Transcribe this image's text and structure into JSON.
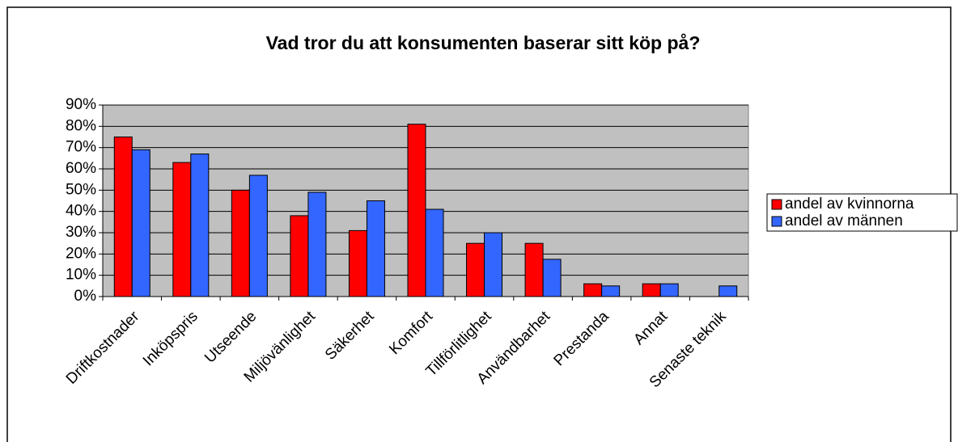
{
  "chart_data": {
    "type": "bar",
    "title": "Vad tror du att konsumenten baserar sitt köp på?",
    "categories": [
      "Driftkostnader",
      "Inköpspris",
      "Utseende",
      "Miljövänlighet",
      "Säkerhet",
      "Komfort",
      "Tillförlitlighet",
      "Användbarhet",
      "Prestanda",
      "Annat",
      "Senaste teknik"
    ],
    "series": [
      {
        "name": "andel av kvinnorna",
        "color": "#ff0000",
        "values": [
          75,
          63,
          50,
          38,
          31,
          81,
          25,
          25,
          6,
          6,
          0
        ]
      },
      {
        "name": "andel av männen",
        "color": "#3366ff",
        "values": [
          69,
          67,
          57,
          49,
          45,
          41,
          30,
          17.5,
          5,
          6,
          5
        ]
      }
    ],
    "ylim": [
      0,
      90
    ],
    "yticks": [
      {
        "value": 0,
        "label": "0%"
      },
      {
        "value": 10,
        "label": "10%"
      },
      {
        "value": 20,
        "label": "20%"
      },
      {
        "value": 30,
        "label": "30%"
      },
      {
        "value": 40,
        "label": "40%"
      },
      {
        "value": 50,
        "label": "50%"
      },
      {
        "value": 60,
        "label": "60%"
      },
      {
        "value": 70,
        "label": "70%"
      },
      {
        "value": 80,
        "label": "80%"
      },
      {
        "value": 90,
        "label": "90%"
      }
    ],
    "grid": true,
    "legend": "right"
  }
}
